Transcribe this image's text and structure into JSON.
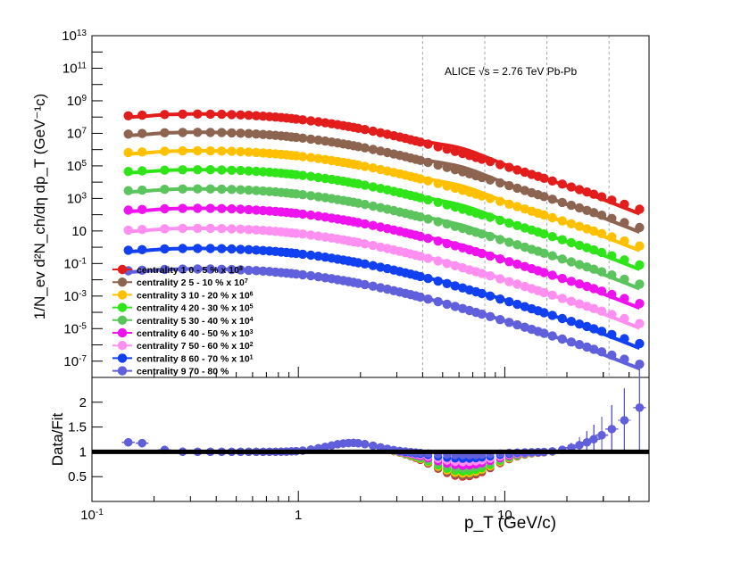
{
  "chart_data": [
    {
      "type": "scatter",
      "panel": "top",
      "annotation": "ALICE √s = 2.76 TeV Pb-Pb",
      "xlabel": "",
      "ylabel": "1/N_ev d²N_ch/dη dp_T (GeV⁻¹c)",
      "xscale": "log",
      "yscale": "log",
      "xlim": [
        0.1,
        50
      ],
      "ylim": [
        1e-08,
        10000000000000.0
      ],
      "y_tick_labels": [
        "10^-7",
        "10^-5",
        "10^-3",
        "10^-1",
        "10",
        "10^3",
        "10^5",
        "10^7",
        "10^9",
        "10^11",
        "10^13"
      ],
      "legend_position": "bottom-left",
      "x": [
        0.15,
        0.175,
        0.225,
        0.275,
        0.325,
        0.375,
        0.425,
        0.475,
        0.525,
        0.575,
        0.625,
        0.675,
        0.725,
        0.775,
        0.825,
        0.875,
        0.925,
        0.975,
        1.05,
        1.15,
        1.25,
        1.35,
        1.45,
        1.55,
        1.65,
        1.75,
        1.85,
        1.95,
        2.1,
        2.3,
        2.5,
        2.7,
        2.9,
        3.1,
        3.3,
        3.5,
        3.7,
        3.9,
        4.25,
        4.75,
        5.25,
        5.75,
        6.25,
        6.75,
        7.25,
        7.75,
        8.5,
        9.5,
        10.5,
        11.5,
        12.5,
        13.5,
        14.5,
        15.5,
        17.0,
        19.0,
        21.0,
        23.0,
        25.0,
        27.0,
        29.5,
        33.0,
        38.0,
        45.0
      ],
      "series": [
        {
          "name": "centrality 1  0 - 5 %  x 10^8",
          "color": "#e31c1c",
          "A": 1000000000.0,
          "ratio_min": 0.5
        },
        {
          "name": "centrality 2  5 - 10 %  x 10^7",
          "color": "#8c6450",
          "A": 75000000.0,
          "ratio_min": 0.52
        },
        {
          "name": "centrality 3  10 - 20 %  x 10^6",
          "color": "#ffc000",
          "A": 5500000.0,
          "ratio_min": 0.56
        },
        {
          "name": "centrality 4  20 - 30 %  x 10^5",
          "color": "#2fe51a",
          "A": 380000.0,
          "ratio_min": 0.6
        },
        {
          "name": "centrality 5  30 - 40 %  x 10^4",
          "color": "#5cc45c",
          "A": 25000.0,
          "ratio_min": 0.66
        },
        {
          "name": "centrality 6  40 - 50 %  x 10^3",
          "color": "#ee12ee",
          "A": 1600.0,
          "ratio_min": 0.72
        },
        {
          "name": "centrality 7  50 - 60 %  x 10^2",
          "color": "#ff8ff0",
          "A": 95,
          "ratio_min": 0.79
        },
        {
          "name": "centrality 8  60 - 70 %  x 10^1",
          "color": "#1040f0",
          "A": 5.5,
          "ratio_min": 0.86
        },
        {
          "name": "centrality 9  70 - 80 %",
          "color": "#6060dd",
          "A": 0.3,
          "ratio_min": 0.93
        }
      ]
    },
    {
      "type": "scatter",
      "panel": "bottom",
      "xlabel": "p_T (GeV/c)",
      "ylabel": "Data/Fit",
      "xscale": "log",
      "xlim": [
        0.1,
        50
      ],
      "ylim": [
        0,
        2.5
      ],
      "y_ticks": [
        "0.5",
        "1",
        "1.5",
        "2"
      ],
      "x_ticks": [
        "10^-1",
        "1",
        "10"
      ],
      "reference_line": 1
    }
  ]
}
